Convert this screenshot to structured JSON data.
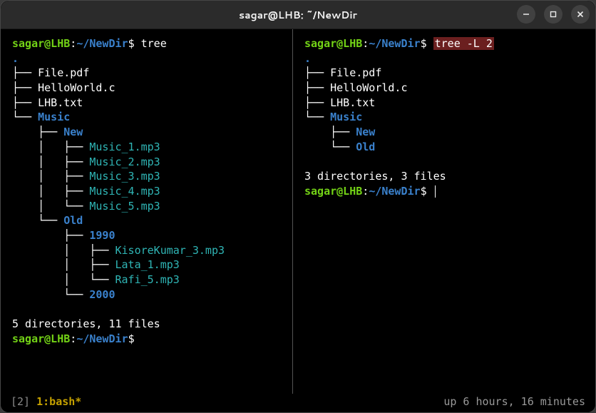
{
  "window": {
    "title": "sagar@LHB: ~/NewDir"
  },
  "colors": {
    "background": "#000000",
    "titlebar": "#2b2b2b",
    "foreground": "#ffffff",
    "user": "#73d216",
    "path": "#3a81cc",
    "directory": "#3a81cc",
    "audio": "#2fb5b5",
    "highlight_bg": "#6b1f1f",
    "session": "#c4a000",
    "status_text": "#999999",
    "divider": "#555555",
    "window_button_bg": "#414141"
  },
  "prompt": {
    "user": "sagar@LHB",
    "sep": ":",
    "path": "~/NewDir",
    "symbol": "$"
  },
  "panes": {
    "left": {
      "command": "tree",
      "highlighted": false,
      "dot": ".",
      "lines": [
        {
          "prefix": "├── ",
          "name": "File.pdf",
          "cls": "filenm"
        },
        {
          "prefix": "├── ",
          "name": "HelloWorld.c",
          "cls": "filenm"
        },
        {
          "prefix": "├── ",
          "name": "LHB.txt",
          "cls": "filenm"
        },
        {
          "prefix": "└── ",
          "name": "Music",
          "cls": "dirnm"
        },
        {
          "prefix": "    ├── ",
          "name": "New",
          "cls": "dirnm"
        },
        {
          "prefix": "    │   ├── ",
          "name": "Music_1.mp3",
          "cls": "audio"
        },
        {
          "prefix": "    │   ├── ",
          "name": "Music_2.mp3",
          "cls": "audio"
        },
        {
          "prefix": "    │   ├── ",
          "name": "Music_3.mp3",
          "cls": "audio"
        },
        {
          "prefix": "    │   ├── ",
          "name": "Music_4.mp3",
          "cls": "audio"
        },
        {
          "prefix": "    │   └── ",
          "name": "Music_5.mp3",
          "cls": "audio"
        },
        {
          "prefix": "    └── ",
          "name": "Old",
          "cls": "dirnm"
        },
        {
          "prefix": "        ├── ",
          "name": "1990",
          "cls": "dirnm"
        },
        {
          "prefix": "        │   ├── ",
          "name": "KisoreKumar_3.mp3",
          "cls": "audio"
        },
        {
          "prefix": "        │   ├── ",
          "name": "Lata_1.mp3",
          "cls": "audio"
        },
        {
          "prefix": "        │   └── ",
          "name": "Rafi_5.mp3",
          "cls": "audio"
        },
        {
          "prefix": "        └── ",
          "name": "2000",
          "cls": "dirnm"
        }
      ],
      "summary": "5 directories, 11 files",
      "trailing_prompt": true,
      "cursor": false
    },
    "right": {
      "command": "tree -L 2",
      "highlighted": true,
      "dot": ".",
      "lines": [
        {
          "prefix": "├── ",
          "name": "File.pdf",
          "cls": "filenm"
        },
        {
          "prefix": "├── ",
          "name": "HelloWorld.c",
          "cls": "filenm"
        },
        {
          "prefix": "├── ",
          "name": "LHB.txt",
          "cls": "filenm"
        },
        {
          "prefix": "└── ",
          "name": "Music",
          "cls": "dirnm"
        },
        {
          "prefix": "    ├── ",
          "name": "New",
          "cls": "dirnm"
        },
        {
          "prefix": "    └── ",
          "name": "Old",
          "cls": "dirnm"
        }
      ],
      "summary": "3 directories, 3 files",
      "trailing_prompt": true,
      "cursor": true
    }
  },
  "statusbar": {
    "left_bracket": "[2]",
    "session": "1:bash*",
    "right": "up 6 hours, 16 minutes"
  }
}
